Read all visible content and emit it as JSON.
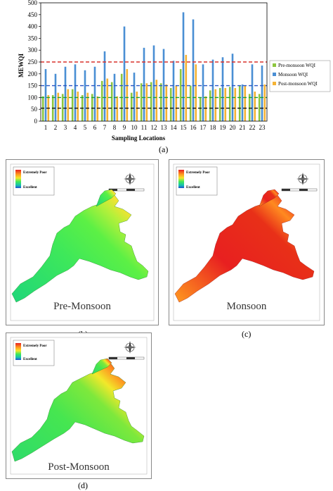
{
  "chart_data": {
    "type": "bar",
    "title": "",
    "xlabel": "Sampling Locations",
    "ylabel": "MEWQI",
    "ylim": [
      0,
      500
    ],
    "yticks": [
      0,
      50,
      100,
      150,
      200,
      250,
      300,
      350,
      400,
      450,
      500
    ],
    "categories": [
      "1",
      "2",
      "3",
      "4",
      "5",
      "6",
      "7",
      "8",
      "9",
      "10",
      "11",
      "12",
      "13",
      "14",
      "15",
      "16",
      "17",
      "18",
      "19",
      "20",
      "21",
      "22",
      "23"
    ],
    "series": [
      {
        "name": "Pre-monsoon WQI",
        "color": "#8dc63f",
        "values": [
          105,
          110,
          115,
          135,
          110,
          115,
          170,
          165,
          200,
          120,
          160,
          165,
          160,
          140,
          220,
          150,
          100,
          130,
          140,
          145,
          150,
          115,
          115
        ]
      },
      {
        "name": "Monsoon WQI",
        "color": "#4a8fd4",
        "values": [
          220,
          200,
          230,
          240,
          215,
          230,
          295,
          200,
          400,
          205,
          310,
          320,
          305,
          255,
          460,
          430,
          240,
          260,
          270,
          285,
          155,
          240,
          235
        ]
      },
      {
        "name": "Post-monsoon WQI",
        "color": "#f5b335",
        "values": [
          110,
          120,
          135,
          125,
          120,
          105,
          180,
          105,
          220,
          125,
          160,
          175,
          155,
          150,
          280,
          240,
          105,
          135,
          140,
          140,
          150,
          125,
          155
        ]
      }
    ],
    "reference_lines": [
      {
        "value": 250,
        "color": "#d9302c"
      },
      {
        "value": 150,
        "color": "#2a57c4"
      },
      {
        "value": 100,
        "color": "#18a032"
      },
      {
        "value": 55,
        "color": "#111111"
      }
    ],
    "legend_position": "right"
  },
  "panel_labels": {
    "a": "(a)",
    "b": "(b)",
    "c": "(c)",
    "d": "(d)"
  },
  "maps": [
    {
      "title": "Pre-Monsoon",
      "theme": "pre"
    },
    {
      "title": "Monsoon",
      "theme": "monsoon"
    },
    {
      "title": "Post-Monsoon",
      "theme": "post"
    }
  ],
  "map_legend": {
    "top": "Extremely Poor",
    "bottom": "Excellent"
  }
}
